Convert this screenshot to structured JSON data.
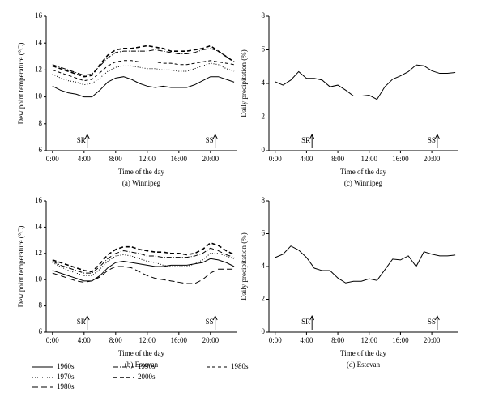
{
  "chart_data": [
    {
      "type": "line",
      "caption": "(a) Winnipeg",
      "xlabel": "Time of the day",
      "ylabel": "Dew point temperature (°C)",
      "x": [
        0,
        1,
        2,
        3,
        4,
        5,
        6,
        7,
        8,
        9,
        10,
        11,
        12,
        13,
        14,
        15,
        16,
        17,
        18,
        19,
        20,
        21,
        22,
        23
      ],
      "xlim": [
        -0.8,
        23.3
      ],
      "xticks": [
        {
          "value": 0,
          "label": "0:00"
        },
        {
          "value": 4,
          "label": "4:00"
        },
        {
          "value": 8,
          "label": "8:00"
        },
        {
          "value": 12,
          "label": "12:00"
        },
        {
          "value": 16,
          "label": "16:00"
        },
        {
          "value": 20,
          "label": "20:00"
        }
      ],
      "ylim": [
        6,
        16
      ],
      "yticks": [
        6,
        8,
        10,
        12,
        14,
        16
      ],
      "annotations": [
        {
          "text": "SR",
          "x": 4.4
        },
        {
          "text": "SS",
          "x": 20.6
        }
      ],
      "series": [
        {
          "color": "#000000",
          "dash": "",
          "width": 1,
          "values": [
            10.8,
            10.5,
            10.3,
            10.2,
            10.0,
            10.0,
            10.5,
            11.1,
            11.4,
            11.5,
            11.3,
            11.0,
            10.8,
            10.7,
            10.8,
            10.7,
            10.7,
            10.7,
            10.9,
            11.2,
            11.5,
            11.5,
            11.3,
            11.1
          ]
        },
        {
          "color": "#000000",
          "dash": "1,2",
          "width": 1,
          "values": [
            11.7,
            11.4,
            11.2,
            11.1,
            10.9,
            11.0,
            11.4,
            11.9,
            12.2,
            12.3,
            12.3,
            12.2,
            12.1,
            12.1,
            12.0,
            12.0,
            11.9,
            11.9,
            12.1,
            12.3,
            12.5,
            12.4,
            12.1,
            11.9
          ]
        },
        {
          "color": "#000000",
          "dash": "4,3",
          "width": 1,
          "values": [
            12.0,
            11.8,
            11.6,
            11.4,
            11.2,
            11.3,
            11.8,
            12.3,
            12.6,
            12.7,
            12.7,
            12.6,
            12.6,
            12.6,
            12.5,
            12.5,
            12.4,
            12.4,
            12.5,
            12.6,
            12.7,
            12.6,
            12.5,
            12.4
          ]
        },
        {
          "color": "#000000",
          "dash": "6,2,1,2",
          "width": 1,
          "values": [
            12.4,
            12.2,
            12.0,
            11.8,
            11.6,
            11.7,
            12.3,
            12.9,
            13.3,
            13.4,
            13.4,
            13.4,
            13.4,
            13.5,
            13.4,
            13.3,
            13.2,
            13.2,
            13.3,
            13.5,
            13.6,
            13.4,
            13.0,
            12.6
          ]
        },
        {
          "color": "#000000",
          "dash": "5,3",
          "width": 1.6,
          "values": [
            12.3,
            12.1,
            11.9,
            11.7,
            11.5,
            11.6,
            12.4,
            13.1,
            13.5,
            13.6,
            13.6,
            13.7,
            13.8,
            13.7,
            13.6,
            13.4,
            13.4,
            13.4,
            13.5,
            13.6,
            13.8,
            13.4,
            13.0,
            12.6
          ]
        }
      ]
    },
    {
      "type": "line",
      "caption": "(b) Estevan",
      "xlabel": "Time of the day",
      "ylabel": "Dew point temperature (°C)",
      "x": [
        0,
        1,
        2,
        3,
        4,
        5,
        6,
        7,
        8,
        9,
        10,
        11,
        12,
        13,
        14,
        15,
        16,
        17,
        18,
        19,
        20,
        21,
        22,
        23
      ],
      "xlim": [
        -0.8,
        23.3
      ],
      "xticks": [
        {
          "value": 0,
          "label": "0:00"
        },
        {
          "value": 4,
          "label": "4:00"
        },
        {
          "value": 8,
          "label": "8:00"
        },
        {
          "value": 12,
          "label": "12:00"
        },
        {
          "value": 16,
          "label": "16:00"
        },
        {
          "value": 20,
          "label": "20:00"
        }
      ],
      "ylim": [
        6,
        16
      ],
      "yticks": [
        6,
        8,
        10,
        12,
        14,
        16
      ],
      "annotations": [
        {
          "text": "SR",
          "x": 4.4
        },
        {
          "text": "SS",
          "x": 20.6
        }
      ],
      "series": [
        {
          "color": "#000000",
          "dash": "",
          "width": 1,
          "values": [
            10.7,
            10.5,
            10.3,
            10.1,
            9.9,
            9.9,
            10.3,
            10.9,
            11.3,
            11.4,
            11.3,
            11.2,
            11.1,
            11.0,
            11.0,
            11.1,
            11.1,
            11.1,
            11.2,
            11.3,
            11.6,
            11.5,
            11.3,
            11.0
          ]
        },
        {
          "color": "#000000",
          "dash": "1,2",
          "width": 1,
          "values": [
            11.3,
            11.0,
            10.7,
            10.5,
            10.3,
            10.3,
            10.8,
            11.4,
            11.8,
            11.9,
            11.8,
            11.6,
            11.4,
            11.3,
            11.1,
            11.0,
            11.0,
            11.0,
            11.2,
            11.5,
            12.0,
            12.0,
            11.8,
            11.6
          ]
        },
        {
          "color": "#000000",
          "dash": "7,4",
          "width": 1,
          "values": [
            10.5,
            10.3,
            10.1,
            9.9,
            9.8,
            9.9,
            10.2,
            10.7,
            11.0,
            11.0,
            10.9,
            10.6,
            10.3,
            10.1,
            10.0,
            9.9,
            9.8,
            9.7,
            9.7,
            10.0,
            10.5,
            10.8,
            10.8,
            10.8
          ]
        },
        {
          "color": "#000000",
          "dash": "6,2,1,2",
          "width": 1,
          "values": [
            11.4,
            11.1,
            10.9,
            10.7,
            10.5,
            10.5,
            11.0,
            11.6,
            12.0,
            12.2,
            12.1,
            12.0,
            11.8,
            11.8,
            11.7,
            11.7,
            11.7,
            11.7,
            11.8,
            12.0,
            12.4,
            12.2,
            11.9,
            11.7
          ]
        },
        {
          "color": "#000000",
          "dash": "5,3",
          "width": 1.6,
          "values": [
            11.5,
            11.3,
            11.1,
            10.9,
            10.7,
            10.6,
            11.2,
            11.9,
            12.3,
            12.5,
            12.5,
            12.3,
            12.2,
            12.1,
            12.1,
            12.0,
            12.0,
            11.9,
            12.0,
            12.3,
            12.8,
            12.6,
            12.2,
            11.9
          ]
        }
      ]
    },
    {
      "type": "line",
      "caption": "(c) Winnipeg",
      "xlabel": "Time of the day",
      "ylabel": "Daily precipitation (%)",
      "x": [
        0,
        1,
        2,
        3,
        4,
        5,
        6,
        7,
        8,
        9,
        10,
        11,
        12,
        13,
        14,
        15,
        16,
        17,
        18,
        19,
        20,
        21,
        22,
        23
      ],
      "xlim": [
        -0.8,
        23.3
      ],
      "xticks": [
        {
          "value": 0,
          "label": "0:00"
        },
        {
          "value": 4,
          "label": "4:00"
        },
        {
          "value": 8,
          "label": "8:00"
        },
        {
          "value": 12,
          "label": "12:00"
        },
        {
          "value": 16,
          "label": "16:00"
        },
        {
          "value": 20,
          "label": "20:00"
        }
      ],
      "ylim": [
        0,
        8
      ],
      "yticks": [
        0,
        2,
        4,
        6,
        8
      ],
      "annotations": [
        {
          "text": "SR",
          "x": 4.7
        },
        {
          "text": "SS",
          "x": 20.7
        }
      ],
      "series": [
        {
          "color": "#000000",
          "dash": "",
          "width": 1,
          "values": [
            4.1,
            3.9,
            4.2,
            4.7,
            4.3,
            4.3,
            4.2,
            3.8,
            3.9,
            3.6,
            3.25,
            3.25,
            3.3,
            3.05,
            3.8,
            4.25,
            4.45,
            4.7,
            5.1,
            5.05,
            4.75,
            4.6,
            4.6,
            4.65
          ]
        }
      ]
    },
    {
      "type": "line",
      "caption": "(d) Estevan",
      "xlabel": "Time of the day",
      "ylabel": "Daily precipitation (%)",
      "x": [
        0,
        1,
        2,
        3,
        4,
        5,
        6,
        7,
        8,
        9,
        10,
        11,
        12,
        13,
        14,
        15,
        16,
        17,
        18,
        19,
        20,
        21,
        22,
        23
      ],
      "xlim": [
        -0.8,
        23.3
      ],
      "xticks": [
        {
          "value": 0,
          "label": "0:00"
        },
        {
          "value": 4,
          "label": "4:00"
        },
        {
          "value": 8,
          "label": "8:00"
        },
        {
          "value": 12,
          "label": "12:00"
        },
        {
          "value": 16,
          "label": "16:00"
        },
        {
          "value": 20,
          "label": "20:00"
        }
      ],
      "ylim": [
        0,
        8
      ],
      "yticks": [
        0,
        2,
        4,
        6,
        8
      ],
      "annotations": [
        {
          "text": "SR",
          "x": 4.7
        },
        {
          "text": "SS",
          "x": 20.7
        }
      ],
      "series": [
        {
          "color": "#000000",
          "dash": "",
          "width": 1,
          "values": [
            4.55,
            4.75,
            5.25,
            5.0,
            4.55,
            3.9,
            3.75,
            3.75,
            3.3,
            3.0,
            3.1,
            3.1,
            3.25,
            3.15,
            3.8,
            4.45,
            4.4,
            4.65,
            4.0,
            4.9,
            4.75,
            4.65,
            4.65,
            4.7
          ]
        }
      ]
    }
  ],
  "legend": [
    {
      "name": "1960s",
      "dash": "",
      "width": 1
    },
    {
      "name": "1990s",
      "dash": "6,2,1,2",
      "width": 1
    },
    {
      "name": "1980s",
      "dash": "4,3",
      "width": 1
    },
    {
      "name": "1970s",
      "dash": "1,2",
      "width": 1
    },
    {
      "name": "2000s",
      "dash": "5,3",
      "width": 1.6
    },
    {
      "name": "1980s",
      "dash": "7,4",
      "width": 1
    }
  ]
}
